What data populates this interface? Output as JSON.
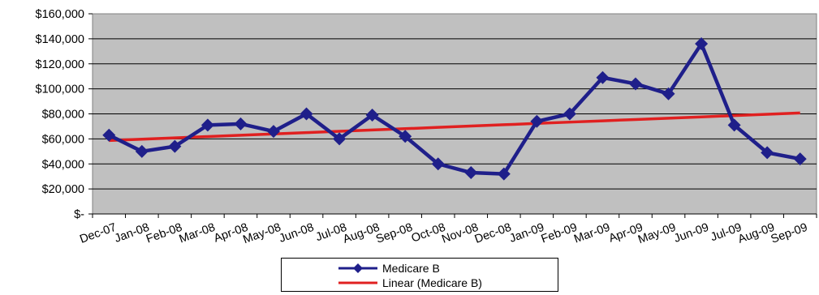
{
  "chart_data": {
    "type": "line",
    "title": "",
    "xlabel": "",
    "ylabel": "",
    "categories": [
      "Dec-07",
      "Jan-08",
      "Feb-08",
      "Mar-08",
      "Apr-08",
      "May-08",
      "Jun-08",
      "Jul-08",
      "Aug-08",
      "Sep-08",
      "Oct-08",
      "Nov-08",
      "Dec-08",
      "Jan-09",
      "Feb-09",
      "Mar-09",
      "Apr-09",
      "May-09",
      "Jun-09",
      "Jul-09",
      "Aug-09",
      "Sep-09"
    ],
    "ylim": [
      0,
      160000
    ],
    "yticks": [
      0,
      20000,
      40000,
      60000,
      80000,
      100000,
      120000,
      140000,
      160000
    ],
    "ytick_labels": [
      "$-",
      "$20,000",
      "$40,000",
      "$60,000",
      "$80,000",
      "$100,000",
      "$120,000",
      "$140,000",
      "$160,000"
    ],
    "grid": true,
    "legend_position": "bottom",
    "series": [
      {
        "name": "Medicare B",
        "color": "#1f1f8a",
        "marker": "diamond",
        "values": [
          63000,
          50000,
          54000,
          71000,
          72000,
          66000,
          80000,
          60000,
          79000,
          62000,
          40000,
          33000,
          32000,
          74000,
          80000,
          109000,
          104000,
          96000,
          136000,
          71000,
          49000,
          44000
        ]
      },
      {
        "name": "Linear (Medicare B)",
        "color": "#e02020",
        "type": "trendline",
        "values": [
          58700,
          59750,
          60800,
          61850,
          62900,
          63950,
          65000,
          66050,
          67100,
          68150,
          69200,
          70250,
          71300,
          72350,
          73400,
          74450,
          75500,
          76550,
          77600,
          78650,
          79700,
          80750
        ]
      }
    ],
    "plot_background": "#c0c0c0"
  }
}
